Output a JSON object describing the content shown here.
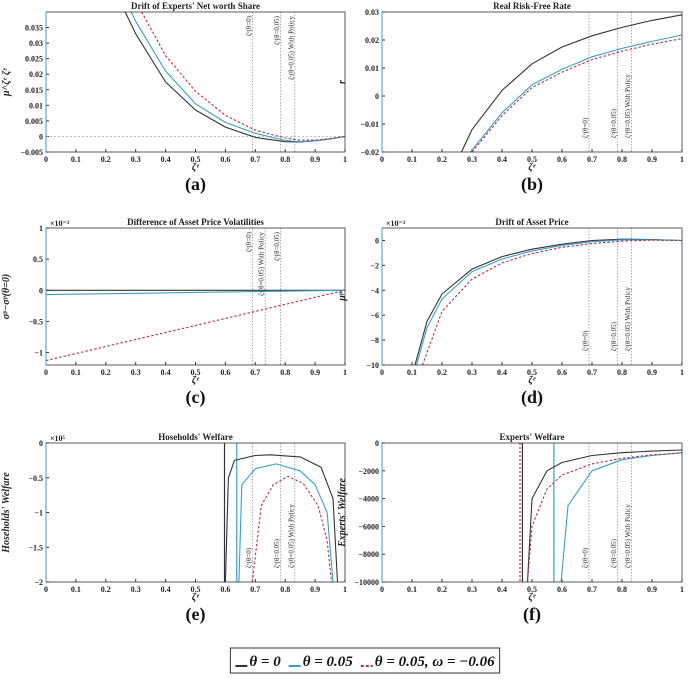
{
  "colors": {
    "theta0": "#333333",
    "theta005": "#3a9fc8",
    "policy": "#b03050"
  },
  "legend": {
    "entries": [
      {
        "label": "θ = 0",
        "color": "#333333",
        "style": "solid"
      },
      {
        "label": "θ = 0.05",
        "color": "#3a9fc8",
        "style": "solid"
      },
      {
        "label": "θ = 0.05, ω = −0.06",
        "color": "#b03050",
        "style": "dashed"
      }
    ]
  },
  "chart_data": [
    {
      "panel": "(a)",
      "type": "line",
      "title": "Drift of Experts' Net worth Share",
      "xlabel": "ζᵉ",
      "ylabel": "μ^ζᵉ ζᵉ",
      "multiplier": "",
      "xlim": [
        0,
        1
      ],
      "ylim": [
        -0.005,
        0.04
      ],
      "xticks": [
        0,
        0.1,
        0.2,
        0.3,
        0.4,
        0.5,
        0.6,
        0.7,
        0.8,
        0.9,
        1
      ],
      "yticks": [
        -0.005,
        0,
        0.005,
        0.01,
        0.015,
        0.02,
        0.025,
        0.03,
        0.035
      ],
      "hline": 0,
      "vlines": [
        {
          "x": 0.69,
          "label": "ζᵉ(θ=0)"
        },
        {
          "x": 0.785,
          "label": "ζᵉ(θ=0.05)"
        },
        {
          "x": 0.832,
          "label": "ζᵉ(θ=0.05) With Policy"
        }
      ],
      "series": [
        {
          "key": "theta0",
          "x": [
            0.265,
            0.3,
            0.4,
            0.5,
            0.6,
            0.7,
            0.8,
            0.85,
            0.9,
            0.95,
            1
          ],
          "y": [
            0.04,
            0.033,
            0.0175,
            0.0085,
            0.003,
            -0.0003,
            -0.0017,
            -0.0018,
            -0.0014,
            -0.0008,
            0
          ]
        },
        {
          "key": "theta005",
          "x": [
            0.285,
            0.3,
            0.4,
            0.5,
            0.6,
            0.7,
            0.8,
            0.85,
            0.9,
            0.95,
            1
          ],
          "y": [
            0.04,
            0.037,
            0.021,
            0.0105,
            0.0045,
            0.001,
            -0.0013,
            -0.0017,
            -0.0014,
            -0.0008,
            0
          ]
        },
        {
          "key": "policy",
          "x": [
            0.32,
            0.4,
            0.5,
            0.6,
            0.7,
            0.8,
            0.85,
            0.9,
            0.95,
            1
          ],
          "y": [
            0.04,
            0.026,
            0.0145,
            0.0068,
            0.002,
            -0.0005,
            -0.0012,
            -0.0012,
            -0.0007,
            0
          ]
        }
      ]
    },
    {
      "panel": "(b)",
      "type": "line",
      "title": "Real Risk-Free Rate",
      "xlabel": "ζᵉ",
      "ylabel": "r",
      "multiplier": "",
      "xlim": [
        0,
        1
      ],
      "ylim": [
        -0.02,
        0.03
      ],
      "xticks": [
        0,
        0.1,
        0.2,
        0.3,
        0.4,
        0.5,
        0.6,
        0.7,
        0.8,
        0.9,
        1
      ],
      "yticks": [
        -0.02,
        -0.01,
        0,
        0.01,
        0.02,
        0.03
      ],
      "vlines": [
        {
          "x": 0.69,
          "label": "ζᵉ(θ=0)"
        },
        {
          "x": 0.785,
          "label": "ζᵉ(θ=0.05)"
        },
        {
          "x": 0.832,
          "label": "ζᵉ(θ=0.05) With Policy"
        }
      ],
      "series": [
        {
          "key": "theta0",
          "x": [
            0.265,
            0.3,
            0.4,
            0.5,
            0.6,
            0.7,
            0.8,
            0.9,
            1
          ],
          "y": [
            -0.02,
            -0.012,
            0.002,
            0.0115,
            0.0175,
            0.0215,
            0.0245,
            0.027,
            0.029
          ]
        },
        {
          "key": "theta005",
          "x": [
            0.295,
            0.4,
            0.5,
            0.6,
            0.7,
            0.8,
            0.9,
            1
          ],
          "y": [
            -0.02,
            -0.006,
            0.004,
            0.0095,
            0.014,
            0.017,
            0.0195,
            0.0218
          ]
        },
        {
          "key": "policy",
          "x": [
            0.3,
            0.4,
            0.5,
            0.6,
            0.7,
            0.8,
            0.9,
            1
          ],
          "y": [
            -0.02,
            -0.007,
            0.003,
            0.0085,
            0.013,
            0.016,
            0.0185,
            0.0205
          ]
        }
      ]
    },
    {
      "panel": "(c)",
      "type": "line",
      "title": "Difference of Asset Price Volatilities",
      "xlabel": "ζᵉ",
      "ylabel": "σᵖ−σᵖ(θ=0)",
      "multiplier": "×10⁻³",
      "xlim": [
        0,
        1
      ],
      "ylim": [
        -1.2,
        1
      ],
      "xticks": [
        0,
        0.1,
        0.2,
        0.3,
        0.4,
        0.5,
        0.6,
        0.7,
        0.8,
        0.9,
        1
      ],
      "yticks": [
        -1,
        -0.5,
        0,
        0.5,
        1
      ],
      "vlines": [
        {
          "x": 0.69,
          "label": "ζᵉ(θ=0)"
        },
        {
          "x": 0.733,
          "label": "ζᵉ(θ=0.05) With Policy"
        },
        {
          "x": 0.785,
          "label": "ζᵉ(θ=0.05)"
        }
      ],
      "series": [
        {
          "key": "theta0",
          "x": [
            0,
            1
          ],
          "y": [
            0,
            0
          ]
        },
        {
          "key": "theta005",
          "x": [
            0,
            1
          ],
          "y": [
            -0.07,
            0
          ]
        },
        {
          "key": "policy",
          "x": [
            0,
            1
          ],
          "y": [
            -1.13,
            0
          ]
        }
      ]
    },
    {
      "panel": "(d)",
      "type": "line",
      "title": "Drift of Asset Price",
      "xlabel": "ζᵉ",
      "ylabel": "μᵖ",
      "multiplier": "×10⁻³",
      "xlim": [
        0,
        1
      ],
      "ylim": [
        -10,
        1
      ],
      "xticks": [
        0,
        0.1,
        0.2,
        0.3,
        0.4,
        0.5,
        0.6,
        0.7,
        0.8,
        0.9,
        1
      ],
      "yticks": [
        -10,
        -8,
        -6,
        -4,
        -2,
        0
      ],
      "vlines": [
        {
          "x": 0.69,
          "label": "ζᵉ(θ=0)"
        },
        {
          "x": 0.785,
          "label": "ζᵉ(θ=0.05)"
        },
        {
          "x": 0.832,
          "label": "ζᵉ(θ=0.05) With Policy"
        }
      ],
      "series": [
        {
          "key": "theta0",
          "x": [
            0.11,
            0.15,
            0.2,
            0.3,
            0.4,
            0.5,
            0.6,
            0.7,
            0.8,
            0.9,
            1
          ],
          "y": [
            -10,
            -6.5,
            -4.3,
            -2.3,
            -1.3,
            -0.7,
            -0.3,
            0,
            0.1,
            0.08,
            0
          ]
        },
        {
          "key": "theta005",
          "x": [
            0.115,
            0.15,
            0.2,
            0.3,
            0.4,
            0.5,
            0.6,
            0.7,
            0.8,
            0.9,
            1
          ],
          "y": [
            -10,
            -7,
            -4.7,
            -2.5,
            -1.5,
            -0.85,
            -0.4,
            -0.1,
            0.05,
            0.05,
            0
          ]
        },
        {
          "key": "policy",
          "x": [
            0.135,
            0.2,
            0.3,
            0.4,
            0.5,
            0.6,
            0.7,
            0.8,
            0.9,
            1
          ],
          "y": [
            -10,
            -5.7,
            -3.1,
            -1.8,
            -1.05,
            -0.55,
            -0.25,
            -0.05,
            0.02,
            0
          ]
        }
      ]
    },
    {
      "panel": "(e)",
      "type": "line",
      "title": "Hoseholds' Welfare",
      "xlabel": "ζᵉ",
      "ylabel": "Hoseholds' Welfare",
      "multiplier": "×10⁵",
      "xlim": [
        0,
        1
      ],
      "ylim": [
        -2,
        0
      ],
      "xticks": [
        0,
        0.1,
        0.2,
        0.3,
        0.4,
        0.5,
        0.6,
        0.7,
        0.8,
        0.9,
        1
      ],
      "yticks": [
        -2,
        -1.5,
        -1,
        -0.5,
        0
      ],
      "solid_vlines": [
        {
          "x": 0.597,
          "key": "theta0"
        },
        {
          "x": 0.638,
          "key": "theta005"
        }
      ],
      "vlines": [
        {
          "x": 0.69,
          "label": "ζᵉ(θ=0)"
        },
        {
          "x": 0.785,
          "label": "ζᵉ(θ=0.05)"
        },
        {
          "x": 0.832,
          "label": "ζᵉ(θ=0.05) With Policy"
        }
      ],
      "series": [
        {
          "key": "theta0",
          "x": [
            0.6,
            0.61,
            0.63,
            0.7,
            0.75,
            0.85,
            0.92,
            0.96,
            0.975
          ],
          "y": [
            -2,
            -0.5,
            -0.25,
            -0.18,
            -0.17,
            -0.2,
            -0.35,
            -0.8,
            -2
          ]
        },
        {
          "key": "theta005",
          "x": [
            0.645,
            0.655,
            0.7,
            0.77,
            0.85,
            0.9,
            0.94,
            0.96
          ],
          "y": [
            -2,
            -0.6,
            -0.37,
            -0.3,
            -0.4,
            -0.6,
            -1.0,
            -2
          ]
        },
        {
          "key": "policy",
          "x": [
            0.69,
            0.72,
            0.76,
            0.81,
            0.86,
            0.91,
            0.94,
            0.955
          ],
          "y": [
            -2,
            -0.9,
            -0.6,
            -0.48,
            -0.58,
            -0.9,
            -1.4,
            -2
          ]
        }
      ]
    },
    {
      "panel": "(f)",
      "type": "line",
      "title": "Experts' Welfare",
      "xlabel": "ζᵉ",
      "ylabel": "Experts' Welfare",
      "multiplier": "",
      "xlim": [
        0,
        1
      ],
      "ylim": [
        -10000,
        0
      ],
      "xticks": [
        0,
        0.1,
        0.2,
        0.3,
        0.4,
        0.5,
        0.6,
        0.7,
        0.8,
        0.9,
        1
      ],
      "yticks": [
        -10000,
        -8000,
        -6000,
        -4000,
        -2000,
        0
      ],
      "solid_vlines": [
        {
          "x": 0.46,
          "key": "policy"
        },
        {
          "x": 0.468,
          "key": "theta0"
        },
        {
          "x": 0.573,
          "key": "theta005"
        }
      ],
      "vlines": [
        {
          "x": 0.69,
          "label": "ζᵉ(θ=0)"
        },
        {
          "x": 0.785,
          "label": "ζᵉ(θ=0.05)"
        },
        {
          "x": 0.832,
          "label": "ζᵉ(θ=0.05) With Policy"
        }
      ],
      "series": [
        {
          "key": "theta0",
          "x": [
            0.485,
            0.5,
            0.55,
            0.6,
            0.7,
            0.8,
            0.9,
            1
          ],
          "y": [
            -10000,
            -4000,
            -2000,
            -1400,
            -900,
            -700,
            -580,
            -500
          ]
        },
        {
          "key": "theta005",
          "x": [
            0.597,
            0.62,
            0.7,
            0.8,
            0.9,
            1
          ],
          "y": [
            -10000,
            -4500,
            -2000,
            -1200,
            -900,
            -700
          ]
        },
        {
          "key": "policy",
          "x": [
            0.485,
            0.5,
            0.55,
            0.6,
            0.7,
            0.8,
            0.9,
            1
          ],
          "y": [
            -10000,
            -6000,
            -3300,
            -2300,
            -1500,
            -1100,
            -850,
            -720
          ]
        }
      ]
    }
  ]
}
